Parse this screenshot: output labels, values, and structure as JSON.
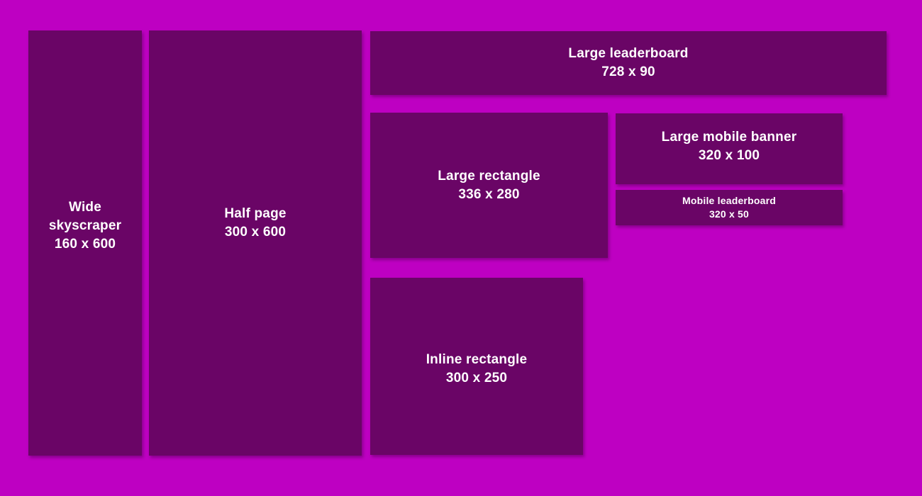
{
  "palette": {
    "background": "#BE00C2",
    "box_color": "#6A0566",
    "text_color": "#FFFFFF"
  },
  "ad_sizes": [
    {
      "id": "wide-skyscraper",
      "name": "Wide skyscraper",
      "dimensions": "160 x 600"
    },
    {
      "id": "half-page",
      "name": "Half page",
      "dimensions": "300 x 600"
    },
    {
      "id": "large-leaderboard",
      "name": "Large leaderboard",
      "dimensions": "728 x 90"
    },
    {
      "id": "large-rectangle",
      "name": "Large rectangle",
      "dimensions": "336 x 280"
    },
    {
      "id": "large-mobile-banner",
      "name": "Large mobile banner",
      "dimensions": "320 x 100"
    },
    {
      "id": "mobile-leaderboard",
      "name": "Mobile leaderboard",
      "dimensions": "320 x 50"
    },
    {
      "id": "inline-rectangle",
      "name": "Inline rectangle",
      "dimensions": "300 x 250"
    }
  ]
}
